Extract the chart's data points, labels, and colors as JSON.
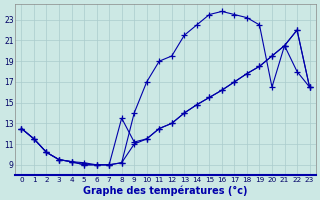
{
  "xlabel": "Graphe des températures (°c)",
  "xlim": [
    -0.5,
    23.5
  ],
  "ylim": [
    8.0,
    24.5
  ],
  "xticks": [
    0,
    1,
    2,
    3,
    4,
    5,
    6,
    7,
    8,
    9,
    10,
    11,
    12,
    13,
    14,
    15,
    16,
    17,
    18,
    19,
    20,
    21,
    22,
    23
  ],
  "yticks": [
    9,
    11,
    13,
    15,
    17,
    19,
    21,
    23
  ],
  "bg_color": "#cce8e4",
  "grid_color": "#aacccc",
  "line_color": "#0000aa",
  "line1_x": [
    0,
    1,
    2,
    3,
    4,
    5,
    6,
    7,
    8,
    9,
    10,
    11,
    12,
    13,
    14,
    15,
    16,
    17,
    18,
    19,
    20,
    21,
    22,
    23
  ],
  "line1_y": [
    12.5,
    11.5,
    10.2,
    9.5,
    9.3,
    9.0,
    9.0,
    9.0,
    9.2,
    14.0,
    17.0,
    19.0,
    19.5,
    21.5,
    22.5,
    23.5,
    23.8,
    23.5,
    23.2,
    22.5,
    16.5,
    20.5,
    18.0,
    16.5
  ],
  "line2_x": [
    0,
    1,
    2,
    3,
    4,
    5,
    6,
    7,
    8,
    9,
    10,
    11,
    12,
    13,
    14,
    15,
    16,
    17,
    18,
    19,
    20,
    21,
    22,
    23
  ],
  "line2_y": [
    12.5,
    11.5,
    10.2,
    9.5,
    9.3,
    9.0,
    9.0,
    9.0,
    9.2,
    11.0,
    11.5,
    12.5,
    13.0,
    14.0,
    14.8,
    15.5,
    16.2,
    17.0,
    17.8,
    18.5,
    19.5,
    20.5,
    22.0,
    16.5
  ],
  "line3_x": [
    0,
    1,
    2,
    3,
    4,
    5,
    6,
    7,
    8,
    9,
    10,
    11,
    12,
    13,
    14,
    15,
    16,
    17,
    18,
    19,
    20,
    21,
    22,
    23
  ],
  "line3_y": [
    12.5,
    11.5,
    10.2,
    9.5,
    9.3,
    9.2,
    9.0,
    9.0,
    13.5,
    11.2,
    11.5,
    12.5,
    13.0,
    14.0,
    14.8,
    15.5,
    16.2,
    17.0,
    17.8,
    18.5,
    19.5,
    20.5,
    22.0,
    16.5
  ]
}
